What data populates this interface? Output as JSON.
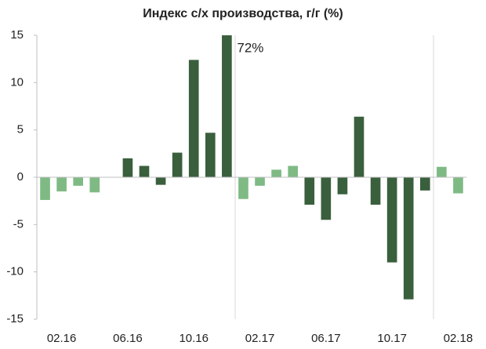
{
  "chart_data": {
    "type": "bar",
    "title": "Индекс с/х производства, г/г (%)",
    "categories": [
      null,
      "02.16",
      null,
      null,
      null,
      "06.16",
      null,
      null,
      null,
      "10.16",
      null,
      null,
      null,
      "02.17",
      null,
      null,
      null,
      "06.17",
      null,
      null,
      null,
      "10.17",
      null,
      null,
      null,
      "02.18"
    ],
    "values": [
      -2.4,
      -1.5,
      -0.9,
      -1.6,
      0,
      2.0,
      1.2,
      -0.8,
      2.6,
      12.4,
      4.7,
      72,
      -2.3,
      -0.9,
      0.8,
      1.2,
      -2.9,
      -4.5,
      -1.8,
      6.4,
      -2.9,
      -9.0,
      -12.9,
      -1.4,
      1.1,
      -1.7
    ],
    "value_labels": [
      null,
      null,
      null,
      null,
      null,
      null,
      null,
      null,
      null,
      null,
      null,
      "72%",
      null,
      null,
      null,
      null,
      null,
      null,
      null,
      null,
      null,
      null,
      null,
      null,
      null,
      null
    ],
    "colors": [
      "#7fba84",
      "#7fba84",
      "#7fba84",
      "#7fba84",
      "#3a5f3d",
      "#3a5f3d",
      "#3a5f3d",
      "#3a5f3d",
      "#3a5f3d",
      "#3a5f3d",
      "#3a5f3d",
      "#3a5f3d",
      "#7fba84",
      "#7fba84",
      "#7fba84",
      "#7fba84",
      "#3a5f3d",
      "#3a5f3d",
      "#3a5f3d",
      "#3a5f3d",
      "#3a5f3d",
      "#3a5f3d",
      "#3a5f3d",
      "#3a5f3d",
      "#7fba84",
      "#7fba84"
    ],
    "ylim": [
      -15,
      15
    ],
    "yticks": [
      -15,
      -10,
      -5,
      0,
      5,
      10,
      15
    ],
    "grid": false
  }
}
